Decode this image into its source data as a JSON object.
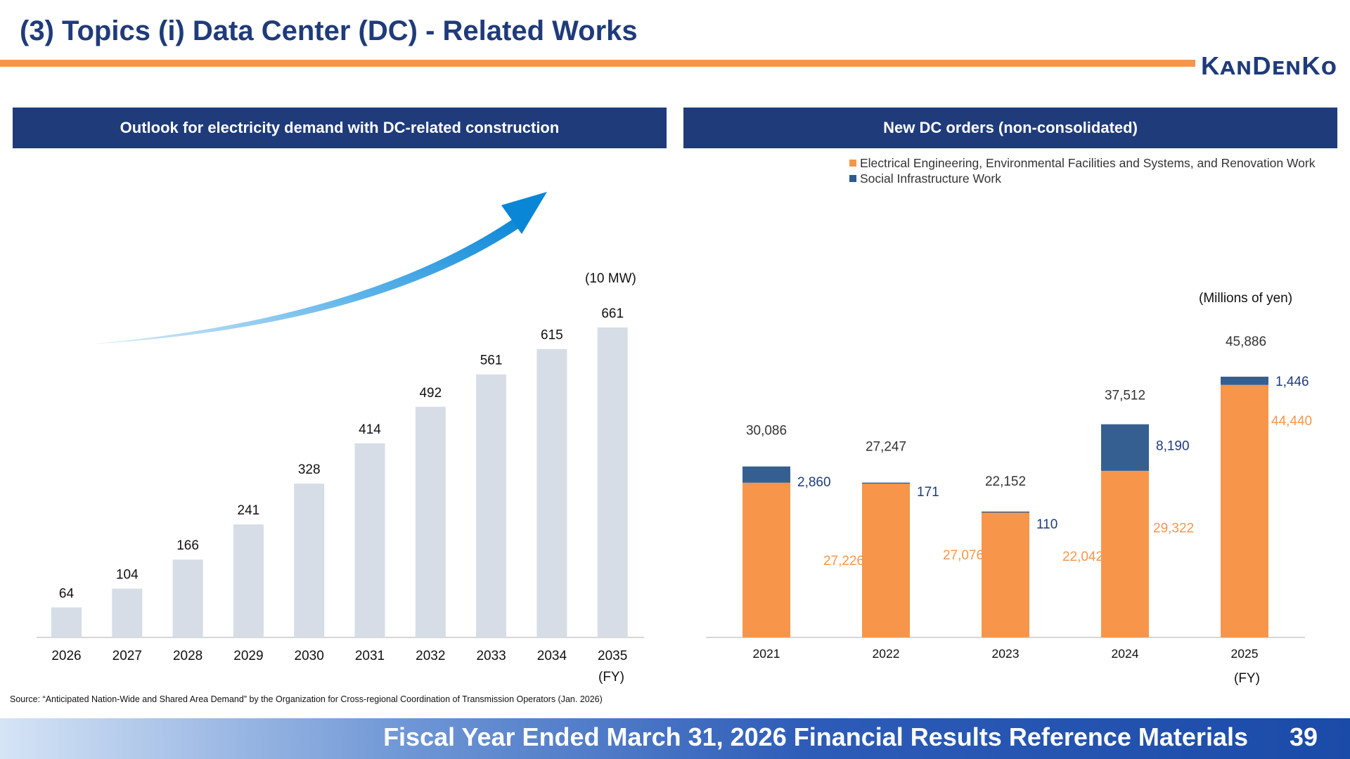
{
  "slide": {
    "title": "(3) Topics  (i) Data Center (DC) - Related Works",
    "logo_text": "KANDENKO",
    "source": "Source: “Anticipated Nation-Wide and Shared Area Demand” by the Organization for Cross-regional Coordination of Transmission Operators (Jan. 2026)",
    "footer": "Fiscal Year Ended March 31, 2026 Financial Results Reference Materials",
    "page_number": "39"
  },
  "left_panel": {
    "header": "Outlook for electricity demand with DC-related construction",
    "unit": "(10 MW)",
    "fy_label": "(FY)"
  },
  "right_panel": {
    "header": "New DC orders (non-consolidated)",
    "unit": "(Millions of yen)",
    "fy_label": "(FY)",
    "legend": [
      {
        "label": "Electrical Engineering, Environmental Facilities and Systems, and Renovation Work",
        "color": "#f7964a"
      },
      {
        "label": "Social Infrastructure Work",
        "color": "#2d5a8e"
      }
    ]
  },
  "colors": {
    "brand_blue": "#1f3b7a",
    "accent_orange": "#f7964a",
    "bar_gray": "#d6dde6",
    "stack_blue": "#365f91",
    "arrow_blue": "#1a8fd8"
  },
  "chart_data": [
    {
      "type": "bar",
      "categories": [
        "2026",
        "2027",
        "2028",
        "2029",
        "2030",
        "2031",
        "2032",
        "2033",
        "2034",
        "2035"
      ],
      "values": [
        64,
        104,
        166,
        241,
        328,
        414,
        492,
        561,
        615,
        661
      ],
      "labels": [
        "64",
        "104",
        "166",
        "241",
        "328",
        "414",
        "492",
        "561",
        "615",
        "661"
      ],
      "ylabel": "(10 MW)",
      "xlabel": "(FY)",
      "ylim": [
        0,
        661
      ],
      "grid": false,
      "annotation": "upward-trend-arrow"
    },
    {
      "type": "bar",
      "stacked": true,
      "categories": [
        "2021",
        "2022",
        "2023",
        "2024",
        "2025"
      ],
      "series": [
        {
          "name": "Electrical Engineering, Environmental Facilities and Systems, and Renovation Work",
          "values": [
            27226,
            27076,
            22042,
            29322,
            44440
          ],
          "labels": [
            "27,226",
            "27,076",
            "22,042",
            "29,322",
            "44,440"
          ]
        },
        {
          "name": "Social Infrastructure Work",
          "values": [
            2860,
            171,
            110,
            8190,
            1446
          ],
          "labels": [
            "2,860",
            "171",
            "110",
            "8,190",
            "1,446"
          ]
        }
      ],
      "totals": [
        30086,
        27247,
        22152,
        37512,
        45886
      ],
      "total_labels": [
        "30,086",
        "27,247",
        "22,152",
        "37,512",
        "45,886"
      ],
      "ylabel": "(Millions of yen)",
      "xlabel": "(FY)",
      "ylim": [
        0,
        45886
      ],
      "grid": false,
      "legend": "top"
    }
  ]
}
